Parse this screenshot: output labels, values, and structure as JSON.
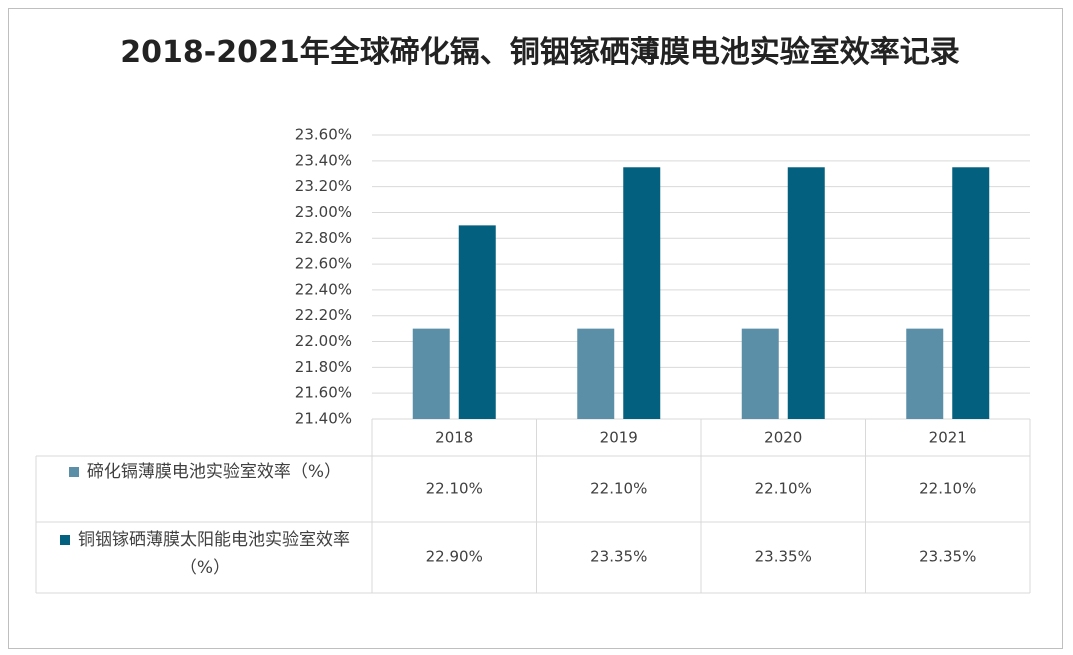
{
  "chart_data": {
    "type": "bar",
    "title": "2018-2021年全球碲化镉、铜铟镓硒薄膜电池实验室效率记录",
    "categories": [
      "2018",
      "2019",
      "2020",
      "2021"
    ],
    "series": [
      {
        "name": "碲化镉薄膜电池实验室效率（%）",
        "color": "#5b8fa8",
        "values": [
          22.1,
          22.1,
          22.1,
          22.1
        ],
        "value_labels": [
          "22.10%",
          "22.10%",
          "22.10%",
          "22.10%"
        ]
      },
      {
        "name": "铜铟镓硒薄膜太阳能电池实验室效率（%）",
        "color": "#04607f",
        "values": [
          22.9,
          23.35,
          23.35,
          23.35
        ],
        "value_labels": [
          "22.90%",
          "23.35%",
          "23.35%",
          "23.35%"
        ]
      }
    ],
    "ylim": [
      21.4,
      23.6
    ],
    "yticks": [
      {
        "value": 21.4,
        "label": "21.40%"
      },
      {
        "value": 21.6,
        "label": "21.60%"
      },
      {
        "value": 21.8,
        "label": "21.80%"
      },
      {
        "value": 22.0,
        "label": "22.00%"
      },
      {
        "value": 22.2,
        "label": "22.20%"
      },
      {
        "value": 22.4,
        "label": "22.40%"
      },
      {
        "value": 22.6,
        "label": "22.60%"
      },
      {
        "value": 22.8,
        "label": "22.80%"
      },
      {
        "value": 23.0,
        "label": "23.00%"
      },
      {
        "value": 23.2,
        "label": "23.20%"
      },
      {
        "value": 23.4,
        "label": "23.40%"
      },
      {
        "value": 23.6,
        "label": "23.60%"
      }
    ],
    "grid": true
  }
}
